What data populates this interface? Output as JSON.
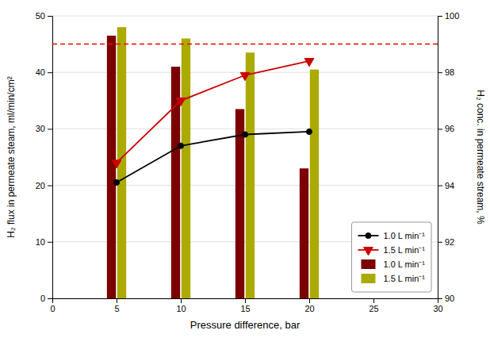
{
  "chart_data": {
    "type": "bar",
    "xlabel": "Pressure difference, bar",
    "ylabel": "H₂ flux in permeate steam, ml/min/cm²",
    "y2label": "H₂ conc. in permeate stream, %",
    "x": [
      5,
      10,
      15,
      20
    ],
    "series": [
      {
        "name": "1.0 L min⁻¹",
        "type": "line",
        "color": "#000000",
        "marker": "circle",
        "values": [
          20.5,
          27.0,
          29.0,
          29.5
        ]
      },
      {
        "name": "1.5 L min⁻¹",
        "type": "line",
        "color": "#CC0000",
        "marker": "triangle-down",
        "values": [
          24.0,
          35.0,
          39.5,
          42.0
        ]
      },
      {
        "name": "1.0 L min⁻¹",
        "type": "bar",
        "color": "#7B0000",
        "values": [
          46.5,
          41.0,
          33.5,
          23.0
        ]
      },
      {
        "name": "1.5 L min⁻¹",
        "type": "bar",
        "color": "#AAAA00",
        "values": [
          48.0,
          46.0,
          43.5,
          40.5
        ]
      }
    ],
    "hline": {
      "value": 45.0,
      "color": "#FF0000",
      "line_style": "dashed"
    },
    "xlim": [
      0,
      30
    ],
    "xticks": [
      0,
      5,
      10,
      15,
      20,
      25,
      30
    ],
    "ylim": [
      0,
      50
    ],
    "yticks": [
      0,
      10,
      20,
      30,
      40,
      50
    ],
    "y2lim": [
      90,
      100
    ],
    "y2ticks": [
      90,
      92,
      94,
      96,
      98,
      100
    ],
    "grid": "y",
    "legend": "lower right"
  }
}
